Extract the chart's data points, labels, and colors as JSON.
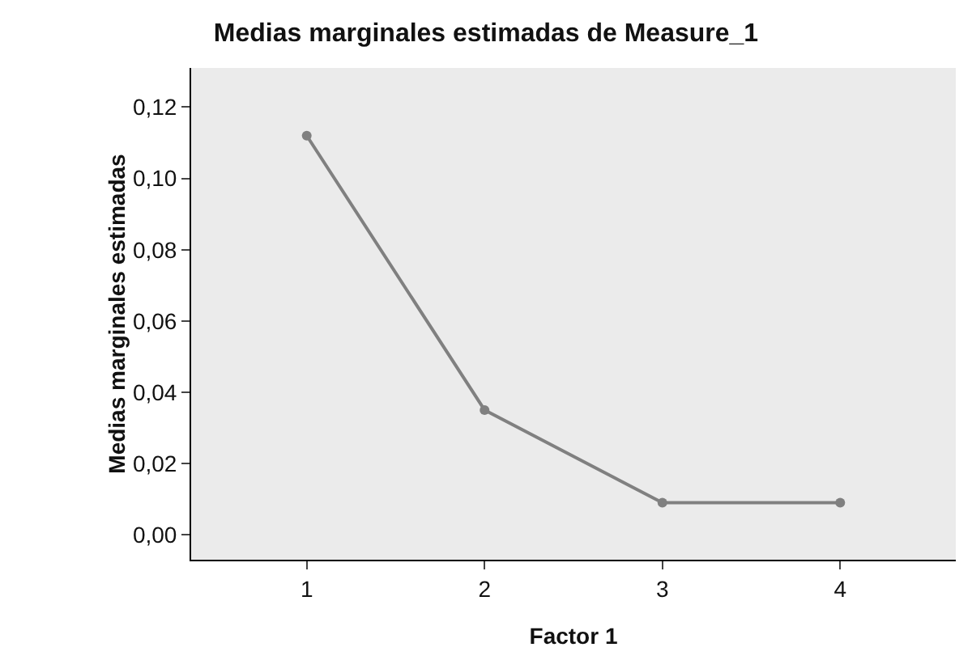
{
  "chart_data": {
    "type": "line",
    "title": "Medias marginales estimadas de Measure_1",
    "xlabel": "Factor 1",
    "ylabel": "Medias marginales estimadas",
    "categories": [
      "1",
      "2",
      "3",
      "4"
    ],
    "series": [
      {
        "color": "#808080",
        "values": [
          0.112,
          0.035,
          0.009,
          0.009
        ]
      }
    ],
    "ylim": [
      -0.007,
      0.131
    ],
    "yticks": [
      {
        "value": 0,
        "label": "0,00"
      },
      {
        "value": 0.02,
        "label": "0,02"
      },
      {
        "value": 0.04,
        "label": "0,04"
      },
      {
        "value": 0.06,
        "label": "0,06"
      },
      {
        "value": 0.08,
        "label": "0,08"
      },
      {
        "value": 0.1,
        "label": "0,10"
      },
      {
        "value": 0.12,
        "label": "0,12"
      }
    ],
    "grid": false,
    "marker": "circle",
    "line_style": "solid"
  }
}
